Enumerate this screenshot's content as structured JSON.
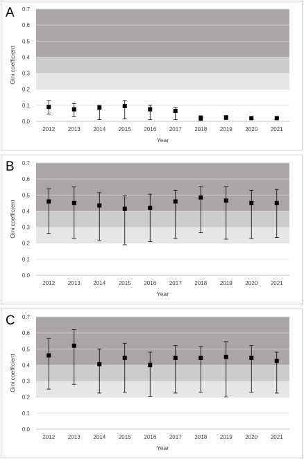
{
  "chart_data": [
    {
      "type": "scatter",
      "panel_label": "A",
      "xlabel": "Year",
      "ylabel": "Gini coefficient",
      "ylim": [
        0,
        0.7
      ],
      "yticks": [
        "0.0",
        "0.1",
        "0.2",
        "0.3",
        "0.4",
        "0.5",
        "0.6",
        "0.7"
      ],
      "categories": [
        "2012",
        "2013",
        "2014",
        "2015",
        "2016",
        "2017",
        "2018",
        "2019",
        "2020",
        "2021"
      ],
      "values": [
        0.09,
        0.075,
        0.085,
        0.095,
        0.075,
        0.065,
        0.02,
        0.025,
        0.02,
        0.02
      ],
      "error_low": [
        0.045,
        0.03,
        0.01,
        0.015,
        0.01,
        0.01,
        0.005,
        0.01,
        0.01,
        0.015
      ],
      "error_high": [
        0.13,
        0.11,
        0.1,
        0.13,
        0.1,
        0.085,
        0.035,
        0.03,
        0.025,
        0.025
      ],
      "bands": [
        {
          "from": 0.2,
          "to": 0.3,
          "color": "#e6e6e6"
        },
        {
          "from": 0.3,
          "to": 0.4,
          "color": "#cccccc"
        },
        {
          "from": 0.4,
          "to": 0.7,
          "color": "#aaa6a6"
        }
      ],
      "grid": true
    },
    {
      "type": "scatter",
      "panel_label": "B",
      "xlabel": "Year",
      "ylabel": "Gini coefficient",
      "ylim": [
        0,
        0.7
      ],
      "yticks": [
        "0.0",
        "0.1",
        "0.2",
        "0.3",
        "0.4",
        "0.5",
        "0.6",
        "0.7"
      ],
      "categories": [
        "2012",
        "2013",
        "2014",
        "2015",
        "2016",
        "2017",
        "2018",
        "2019",
        "2020",
        "2021"
      ],
      "values": [
        0.46,
        0.45,
        0.435,
        0.415,
        0.42,
        0.46,
        0.485,
        0.465,
        0.45,
        0.45
      ],
      "error_low": [
        0.26,
        0.23,
        0.215,
        0.19,
        0.21,
        0.23,
        0.265,
        0.225,
        0.23,
        0.235
      ],
      "error_high": [
        0.54,
        0.55,
        0.515,
        0.495,
        0.505,
        0.53,
        0.555,
        0.555,
        0.53,
        0.535
      ],
      "bands": [
        {
          "from": 0.2,
          "to": 0.3,
          "color": "#e6e6e6"
        },
        {
          "from": 0.3,
          "to": 0.4,
          "color": "#cccccc"
        },
        {
          "from": 0.4,
          "to": 0.7,
          "color": "#aaa6a6"
        }
      ],
      "grid": true
    },
    {
      "type": "scatter",
      "panel_label": "C",
      "xlabel": "Year",
      "ylabel": "Gini coefficient",
      "ylim": [
        0,
        0.7
      ],
      "yticks": [
        "0.0",
        "0.1",
        "0.2",
        "0.3",
        "0.4",
        "0.5",
        "0.6",
        "0.7"
      ],
      "categories": [
        "2012",
        "2013",
        "2014",
        "2015",
        "2016",
        "2017",
        "2018",
        "2019",
        "2020",
        "2021"
      ],
      "values": [
        0.46,
        0.52,
        0.405,
        0.445,
        0.4,
        0.445,
        0.445,
        0.45,
        0.445,
        0.425
      ],
      "error_low": [
        0.25,
        0.28,
        0.225,
        0.23,
        0.205,
        0.225,
        0.23,
        0.2,
        0.23,
        0.225
      ],
      "error_high": [
        0.565,
        0.62,
        0.5,
        0.535,
        0.48,
        0.52,
        0.515,
        0.545,
        0.52,
        0.48
      ],
      "bands": [
        {
          "from": 0.2,
          "to": 0.3,
          "color": "#e6e6e6"
        },
        {
          "from": 0.3,
          "to": 0.4,
          "color": "#cccccc"
        },
        {
          "from": 0.4,
          "to": 0.7,
          "color": "#aaa6a6"
        }
      ],
      "grid": true
    }
  ]
}
